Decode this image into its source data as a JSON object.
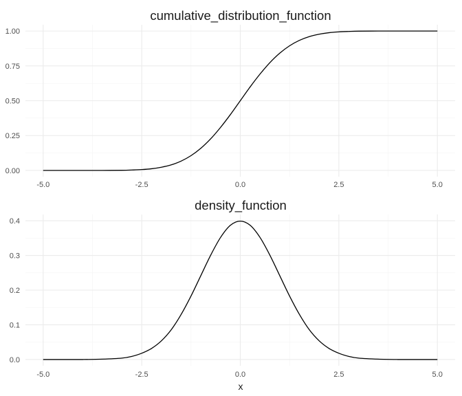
{
  "chart_data": [
    {
      "type": "line",
      "title": "cumulative_distribution_function",
      "xlabel": "",
      "ylabel": "",
      "xlim": [
        -5,
        5
      ],
      "ylim": [
        0,
        1
      ],
      "x_ticks": [
        -5,
        -2.5,
        0,
        2.5,
        5
      ],
      "x_tick_labels": [
        "-5.0",
        "-2.5",
        "0.0",
        "2.5",
        "5.0"
      ],
      "y_ticks": [
        0,
        0.25,
        0.5,
        0.75,
        1
      ],
      "y_tick_labels": [
        "0.00",
        "0.25",
        "0.50",
        "0.75",
        "1.00"
      ],
      "grid": true,
      "series": [
        {
          "x": [
            -5,
            -4.5,
            -4,
            -3.5,
            -3,
            -2.75,
            -2.5,
            -2.25,
            -2,
            -1.75,
            -1.5,
            -1.25,
            -1,
            -0.75,
            -0.5,
            -0.25,
            0,
            0.25,
            0.5,
            0.75,
            1,
            1.25,
            1.5,
            1.75,
            2,
            2.25,
            2.5,
            2.75,
            3,
            3.5,
            4,
            4.5,
            5
          ],
          "values": [
            0,
            0,
            0,
            0,
            0.001,
            0.003,
            0.006,
            0.012,
            0.023,
            0.04,
            0.067,
            0.106,
            0.159,
            0.227,
            0.309,
            0.401,
            0.5,
            0.599,
            0.691,
            0.773,
            0.841,
            0.894,
            0.933,
            0.96,
            0.977,
            0.988,
            0.994,
            0.997,
            0.999,
            1,
            1,
            1,
            1
          ],
          "color": "#000000"
        }
      ]
    },
    {
      "type": "line",
      "title": "density_function",
      "xlabel": "x",
      "ylabel": "",
      "xlim": [
        -5,
        5
      ],
      "ylim": [
        0,
        0.4
      ],
      "x_ticks": [
        -5,
        -2.5,
        0,
        2.5,
        5
      ],
      "x_tick_labels": [
        "-5.0",
        "-2.5",
        "0.0",
        "2.5",
        "5.0"
      ],
      "y_ticks": [
        0,
        0.1,
        0.2,
        0.3,
        0.4
      ],
      "y_tick_labels": [
        "0.0",
        "0.1",
        "0.2",
        "0.3",
        "0.4"
      ],
      "grid": true,
      "series": [
        {
          "x": [
            -5,
            -4.5,
            -4,
            -3.5,
            -3,
            -2.75,
            -2.5,
            -2.25,
            -2,
            -1.75,
            -1.5,
            -1.25,
            -1,
            -0.75,
            -0.5,
            -0.25,
            0,
            0.25,
            0.5,
            0.75,
            1,
            1.25,
            1.5,
            1.75,
            2,
            2.25,
            2.5,
            2.75,
            3,
            3.5,
            4,
            4.5,
            5
          ],
          "values": [
            0,
            0,
            0,
            0.001,
            0.004,
            0.009,
            0.018,
            0.032,
            0.054,
            0.086,
            0.13,
            0.183,
            0.242,
            0.301,
            0.352,
            0.387,
            0.399,
            0.387,
            0.352,
            0.301,
            0.242,
            0.183,
            0.13,
            0.086,
            0.054,
            0.032,
            0.018,
            0.009,
            0.004,
            0.001,
            0,
            0,
            0
          ],
          "color": "#000000"
        }
      ]
    }
  ]
}
